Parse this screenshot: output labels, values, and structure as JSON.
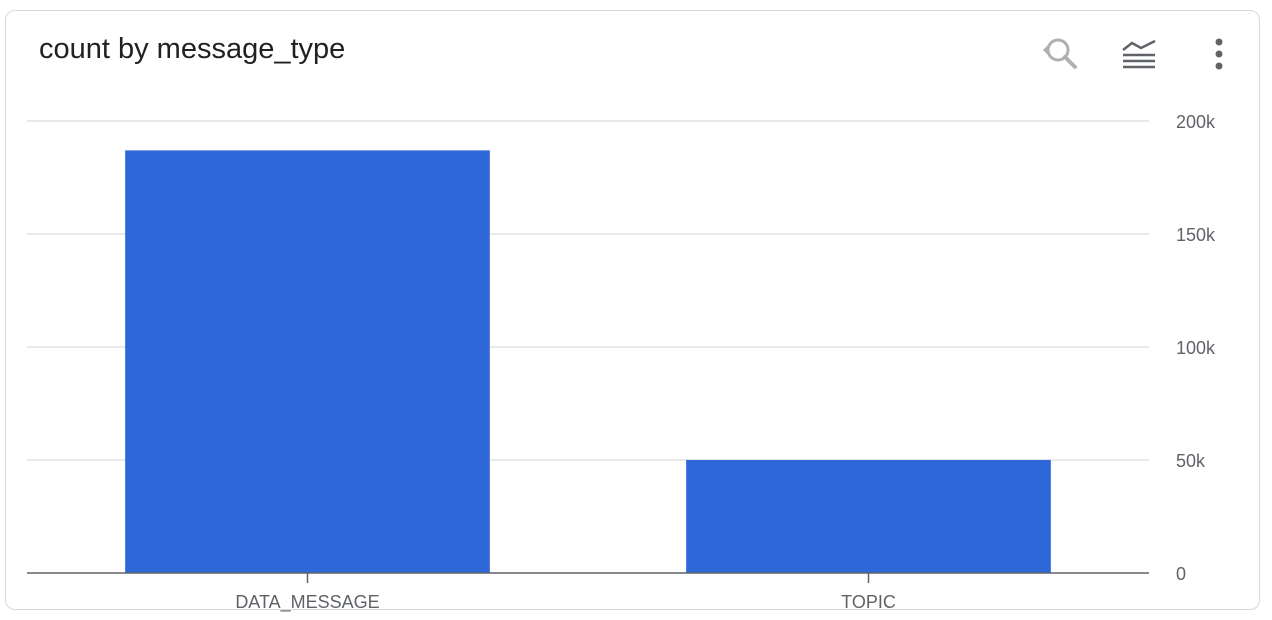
{
  "card": {
    "title": "count by message_type"
  },
  "toolbar": {
    "zoom_reset_icon": "zoom-reset-icon",
    "chart_style_icon": "chart-style-icon",
    "more_icon": "more-vert-icon",
    "icon_color": "#b0b0b0",
    "icon_dark_color": "#5f6368"
  },
  "chart_data": {
    "type": "bar",
    "title": "count by message_type",
    "categories": [
      "DATA_MESSAGE",
      "TOPIC"
    ],
    "values": [
      187000,
      50000
    ],
    "ylim": [
      0,
      200000
    ],
    "yticks": [
      0,
      50000,
      100000,
      150000,
      200000
    ],
    "ytick_labels": [
      "0",
      "50k",
      "100k",
      "150k",
      "200k"
    ],
    "xlabel": "",
    "ylabel": "",
    "y_axis_position": "right",
    "grid": true,
    "bar_color": "#2e67d8"
  }
}
